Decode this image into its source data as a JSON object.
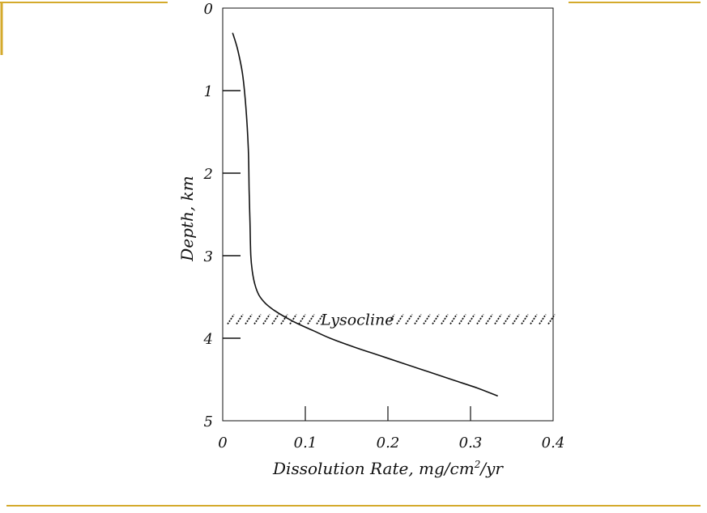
{
  "theme": {
    "accent": "#d4aa2c",
    "ink": "#111111"
  },
  "chart_data": {
    "type": "line",
    "ylabel": "Depth, km",
    "xlabel_main": "Dissolution Rate, mg/cm",
    "xlabel_sup": "2",
    "xlabel_end": "/yr",
    "xlim": [
      0,
      0.4
    ],
    "ylim": [
      0,
      5
    ],
    "y_inverted": true,
    "x_ticks": [
      {
        "value": 0,
        "label": "0"
      },
      {
        "value": 0.1,
        "label": "0.1"
      },
      {
        "value": 0.2,
        "label": "0.2"
      },
      {
        "value": 0.3,
        "label": "0.3"
      },
      {
        "value": 0.4,
        "label": "0.4"
      }
    ],
    "y_ticks": [
      {
        "value": 0,
        "label": "0"
      },
      {
        "value": 1,
        "label": "1"
      },
      {
        "value": 2,
        "label": "2"
      },
      {
        "value": 3,
        "label": "3"
      },
      {
        "value": 4,
        "label": "4"
      },
      {
        "value": 5,
        "label": "5"
      }
    ],
    "series": [
      {
        "x": [
          0.012,
          0.018,
          0.024,
          0.028,
          0.031,
          0.032,
          0.033,
          0.034,
          0.036,
          0.039,
          0.044,
          0.052,
          0.062,
          0.075,
          0.09,
          0.11,
          0.13,
          0.16,
          0.19,
          0.22,
          0.25,
          0.28,
          0.31,
          0.333
        ],
        "y": [
          0.3,
          0.5,
          0.8,
          1.2,
          1.7,
          2.2,
          2.6,
          3.0,
          3.2,
          3.35,
          3.48,
          3.58,
          3.66,
          3.74,
          3.82,
          3.91,
          4.0,
          4.11,
          4.21,
          4.31,
          4.41,
          4.51,
          4.61,
          4.7
        ]
      }
    ],
    "annotations": [
      {
        "text": "Lysocline",
        "depth": 3.77
      }
    ]
  }
}
